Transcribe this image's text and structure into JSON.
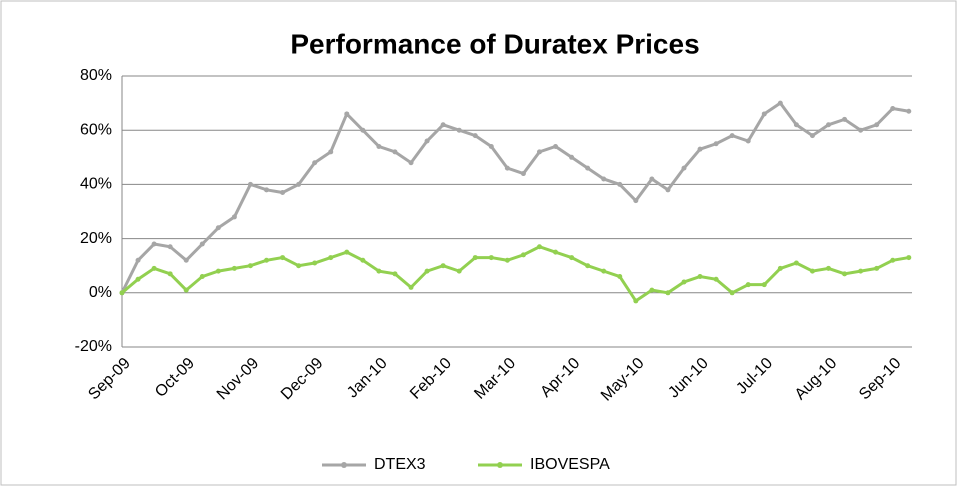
{
  "chart_data": {
    "type": "line",
    "title": "Performance of Duratex Prices",
    "categories": [
      "Sep-09",
      null,
      null,
      null,
      "Oct-09",
      null,
      null,
      null,
      "Nov-09",
      null,
      null,
      null,
      "Dec-09",
      null,
      null,
      null,
      "Jan-10",
      null,
      null,
      null,
      "Feb-10",
      null,
      null,
      null,
      "Mar-10",
      null,
      null,
      null,
      "Apr-10",
      null,
      null,
      null,
      "May-10",
      null,
      null,
      null,
      "Jun-10",
      null,
      null,
      null,
      "Jul-10",
      null,
      null,
      null,
      "Aug-10",
      null,
      null,
      null,
      "Sep-10",
      null
    ],
    "series": [
      {
        "name": "DTEX3",
        "color": "#a6a6a6",
        "values": [
          0,
          12,
          18,
          17,
          12,
          18,
          24,
          28,
          40,
          38,
          37,
          40,
          48,
          52,
          66,
          60,
          54,
          52,
          48,
          56,
          62,
          60,
          58,
          54,
          46,
          44,
          52,
          54,
          50,
          46,
          42,
          40,
          34,
          42,
          38,
          46,
          53,
          55,
          58,
          56,
          66,
          70,
          62,
          58,
          62,
          64,
          60,
          62,
          68,
          67
        ]
      },
      {
        "name": "IBOVESPA",
        "color": "#92d050",
        "values": [
          0,
          5,
          9,
          7,
          1,
          6,
          8,
          9,
          10,
          12,
          13,
          10,
          11,
          13,
          15,
          12,
          8,
          7,
          2,
          8,
          10,
          8,
          13,
          13,
          12,
          14,
          17,
          15,
          13,
          10,
          8,
          6,
          -3,
          1,
          0,
          4,
          6,
          5,
          0,
          3,
          3,
          9,
          11,
          8,
          9,
          7,
          8,
          9,
          12,
          13
        ]
      }
    ],
    "ylim": [
      -20,
      80
    ],
    "yticks": [
      {
        "value": -20,
        "label": "-20%"
      },
      {
        "value": 0,
        "label": "0%"
      },
      {
        "value": 20,
        "label": "20%"
      },
      {
        "value": 40,
        "label": "40%"
      },
      {
        "value": 60,
        "label": "60%"
      },
      {
        "value": 80,
        "label": "80%"
      }
    ],
    "grid": true,
    "legend": "bottom"
  }
}
